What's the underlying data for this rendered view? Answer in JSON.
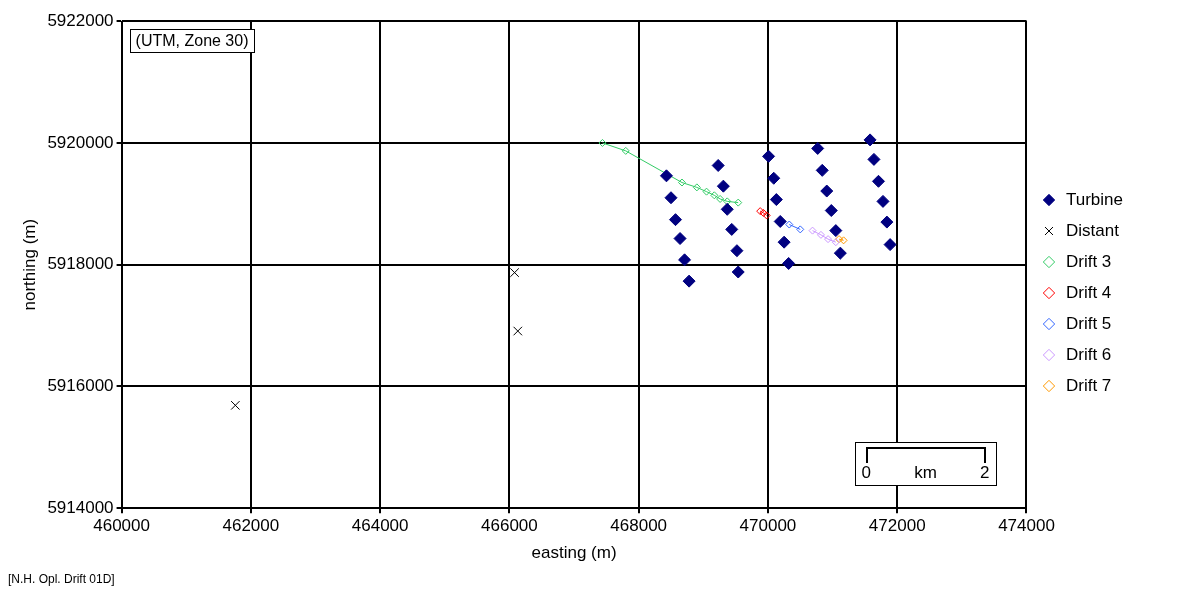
{
  "chart_data": {
    "type": "scatter",
    "xlabel": "easting (m)",
    "ylabel": "northing (m)",
    "xlim": [
      460000,
      474000
    ],
    "xticks": [
      460000,
      462000,
      464000,
      466000,
      468000,
      470000,
      472000,
      474000
    ],
    "ylim": [
      5914000,
      5922000
    ],
    "yticks": [
      5914000,
      5916000,
      5918000,
      5920000,
      5922000
    ],
    "grid": true,
    "legend": "right",
    "annotations": [
      "(UTM, Zone 30)",
      "[N.H. Opl. Drift 01D]",
      "0",
      "km",
      "2"
    ],
    "series": [
      {
        "name": "Turbine",
        "type": "scatter",
        "marker": "diamond",
        "color": "#000080",
        "x": [
          468430,
          468500,
          468570,
          468640,
          468710,
          468780,
          469230,
          469310,
          469370,
          469440,
          469520,
          469540,
          470010,
          470090,
          470130,
          470190,
          470250,
          470320,
          470770,
          470840,
          470910,
          470980,
          471050,
          471120,
          471580,
          471640,
          471710,
          471780,
          471840,
          471890
        ],
        "values": [
          5919460,
          5919100,
          5918740,
          5918430,
          5918080,
          5917730,
          5919630,
          5919290,
          5918910,
          5918580,
          5918230,
          5917880,
          5919780,
          5919420,
          5919070,
          5918710,
          5918370,
          5918020,
          5919910,
          5919550,
          5919210,
          5918890,
          5918560,
          5918190,
          5920050,
          5919730,
          5919370,
          5919040,
          5918700,
          5918330
        ]
      },
      {
        "name": "Distant",
        "type": "scatter",
        "marker": "cross",
        "color": "#000000",
        "x": [
          466080,
          466130,
          461760
        ],
        "values": [
          5917870,
          5916910,
          5915690
        ]
      },
      {
        "name": "Drift 3",
        "type": "line",
        "marker": "diamond",
        "color": "#33cc66",
        "x": [
          467440,
          467800,
          468670,
          468900,
          469050,
          469170,
          469260,
          469370,
          469540
        ],
        "values": [
          5920000,
          5919870,
          5919350,
          5919270,
          5919200,
          5919140,
          5919080,
          5919040,
          5919020
        ]
      },
      {
        "name": "Drift 4",
        "type": "line",
        "marker": "diamond",
        "color": "#ff0000",
        "x": [
          469880,
          469930,
          469980
        ],
        "values": [
          5918880,
          5918850,
          5918810
        ]
      },
      {
        "name": "Drift 5",
        "type": "line",
        "marker": "diamond",
        "color": "#3366ff",
        "x": [
          470330,
          470500
        ],
        "values": [
          5918660,
          5918580
        ]
      },
      {
        "name": "Drift 6",
        "type": "line",
        "marker": "diamond",
        "color": "#cc99ff",
        "x": [
          470690,
          470820,
          470930,
          471050
        ],
        "values": [
          5918560,
          5918490,
          5918420,
          5918370
        ]
      },
      {
        "name": "Drift 7",
        "type": "line",
        "marker": "diamond",
        "color": "#ff9900",
        "x": [
          471100,
          471170
        ],
        "values": [
          5918420,
          5918400
        ]
      }
    ]
  }
}
